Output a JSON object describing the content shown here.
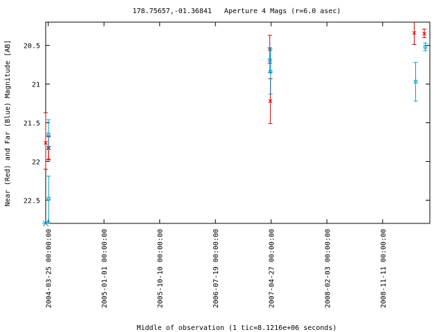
{
  "chart_data": {
    "type": "scatter",
    "title": "178.75657,-01.36841   Aperture 4 Mags (r=6.0 asec)",
    "xlabel": "Middle of observation (1 tic=8.1216e+06 seconds)",
    "ylabel": "Near (Red) and Far (Blue) Magnitude [AB]",
    "y_inverted": true,
    "ylim": [
      22.8,
      20.2
    ],
    "yticks": [
      "20.5",
      "21",
      "21.5",
      "22",
      "22.5"
    ],
    "ytick_values": [
      20.5,
      21.0,
      21.5,
      22.0,
      22.5
    ],
    "xlim": [
      "2004-03-12",
      "2009-07-08"
    ],
    "xticks": [
      "2004-03-25 00:00:00",
      "2005-01-01 00:00:00",
      "2005-10-10 00:00:00",
      "2006-07-19 00:00:00",
      "2007-04-27 00:00:00",
      "2008-02-03 00:00:00",
      "2008-11-11 00:00:00"
    ],
    "xtick_dates": [
      "2004-03-25",
      "2005-01-01",
      "2005-10-10",
      "2006-07-19",
      "2007-04-27",
      "2008-02-03",
      "2008-11-11"
    ],
    "grid": false,
    "series": [
      {
        "name": "Near",
        "color": "#cc0000",
        "marker": "x",
        "points": [
          {
            "x": "2004-03-12",
            "y": 21.76,
            "lo": 21.37,
            "hi": 22.1
          },
          {
            "x": "2004-03-26",
            "y": 21.82,
            "lo": 21.67,
            "hi": 21.97
          },
          {
            "x": "2004-03-27",
            "y": 21.83,
            "lo": 21.68,
            "hi": 21.98
          },
          {
            "x": "2007-04-20",
            "y": 20.55,
            "lo": 20.37,
            "hi": 20.73
          },
          {
            "x": "2007-04-23",
            "y": 21.22,
            "lo": 20.93,
            "hi": 21.51
          },
          {
            "x": "2009-04-20",
            "y": 20.34,
            "lo": 20.18,
            "hi": 20.49
          },
          {
            "x": "2009-06-10",
            "y": 20.35,
            "lo": 20.29,
            "hi": 20.4
          }
        ]
      },
      {
        "name": "Far",
        "color": "#0099cc",
        "marker": "square",
        "points": [
          {
            "x": "2004-03-26",
            "y": 21.65,
            "lo": 21.46,
            "hi": 21.84
          },
          {
            "x": "2004-03-27",
            "y": 22.48,
            "lo": 22.19,
            "hi": 22.78
          },
          {
            "x": "2007-04-20",
            "y": 20.69,
            "lo": 20.53,
            "hi": 20.85
          },
          {
            "x": "2007-04-24",
            "y": 20.84,
            "lo": 20.55,
            "hi": 21.13
          },
          {
            "x": "2009-04-27",
            "y": 20.97,
            "lo": 20.72,
            "hi": 21.22
          },
          {
            "x": "2009-06-15",
            "y": 20.52,
            "lo": 20.47,
            "hi": 20.57
          }
        ]
      }
    ]
  }
}
